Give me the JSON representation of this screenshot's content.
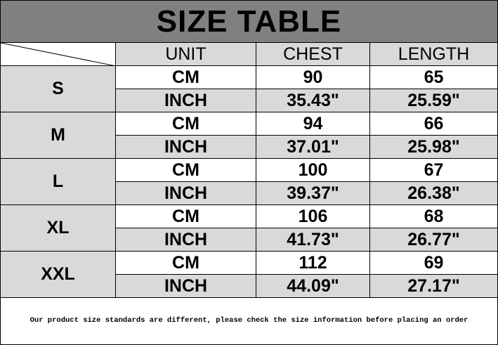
{
  "title": "SIZE TABLE",
  "headers": [
    "UNIT",
    "CHEST",
    "LENGTH"
  ],
  "rows": [
    {
      "size": "S",
      "cm": {
        "unit": "CM",
        "chest": "90",
        "length": "65"
      },
      "inch": {
        "unit": "INCH",
        "chest": "35.43\"",
        "length": "25.59\""
      }
    },
    {
      "size": "M",
      "cm": {
        "unit": "CM",
        "chest": "94",
        "length": "66"
      },
      "inch": {
        "unit": "INCH",
        "chest": "37.01\"",
        "length": "25.98\""
      }
    },
    {
      "size": "L",
      "cm": {
        "unit": "CM",
        "chest": "100",
        "length": "67"
      },
      "inch": {
        "unit": "INCH",
        "chest": "39.37\"",
        "length": "26.38\""
      }
    },
    {
      "size": "XL",
      "cm": {
        "unit": "CM",
        "chest": "106",
        "length": "68"
      },
      "inch": {
        "unit": "INCH",
        "chest": "41.73\"",
        "length": "26.77\""
      }
    },
    {
      "size": "XXL",
      "cm": {
        "unit": "CM",
        "chest": "112",
        "length": "69"
      },
      "inch": {
        "unit": "INCH",
        "chest": "44.09\"",
        "length": "27.17\""
      }
    }
  ],
  "footer_note": "Our product size standards are different, please check the size information before placing an order",
  "colors": {
    "title_bg": "#808080",
    "shaded_cell": "#d9d9d9"
  }
}
